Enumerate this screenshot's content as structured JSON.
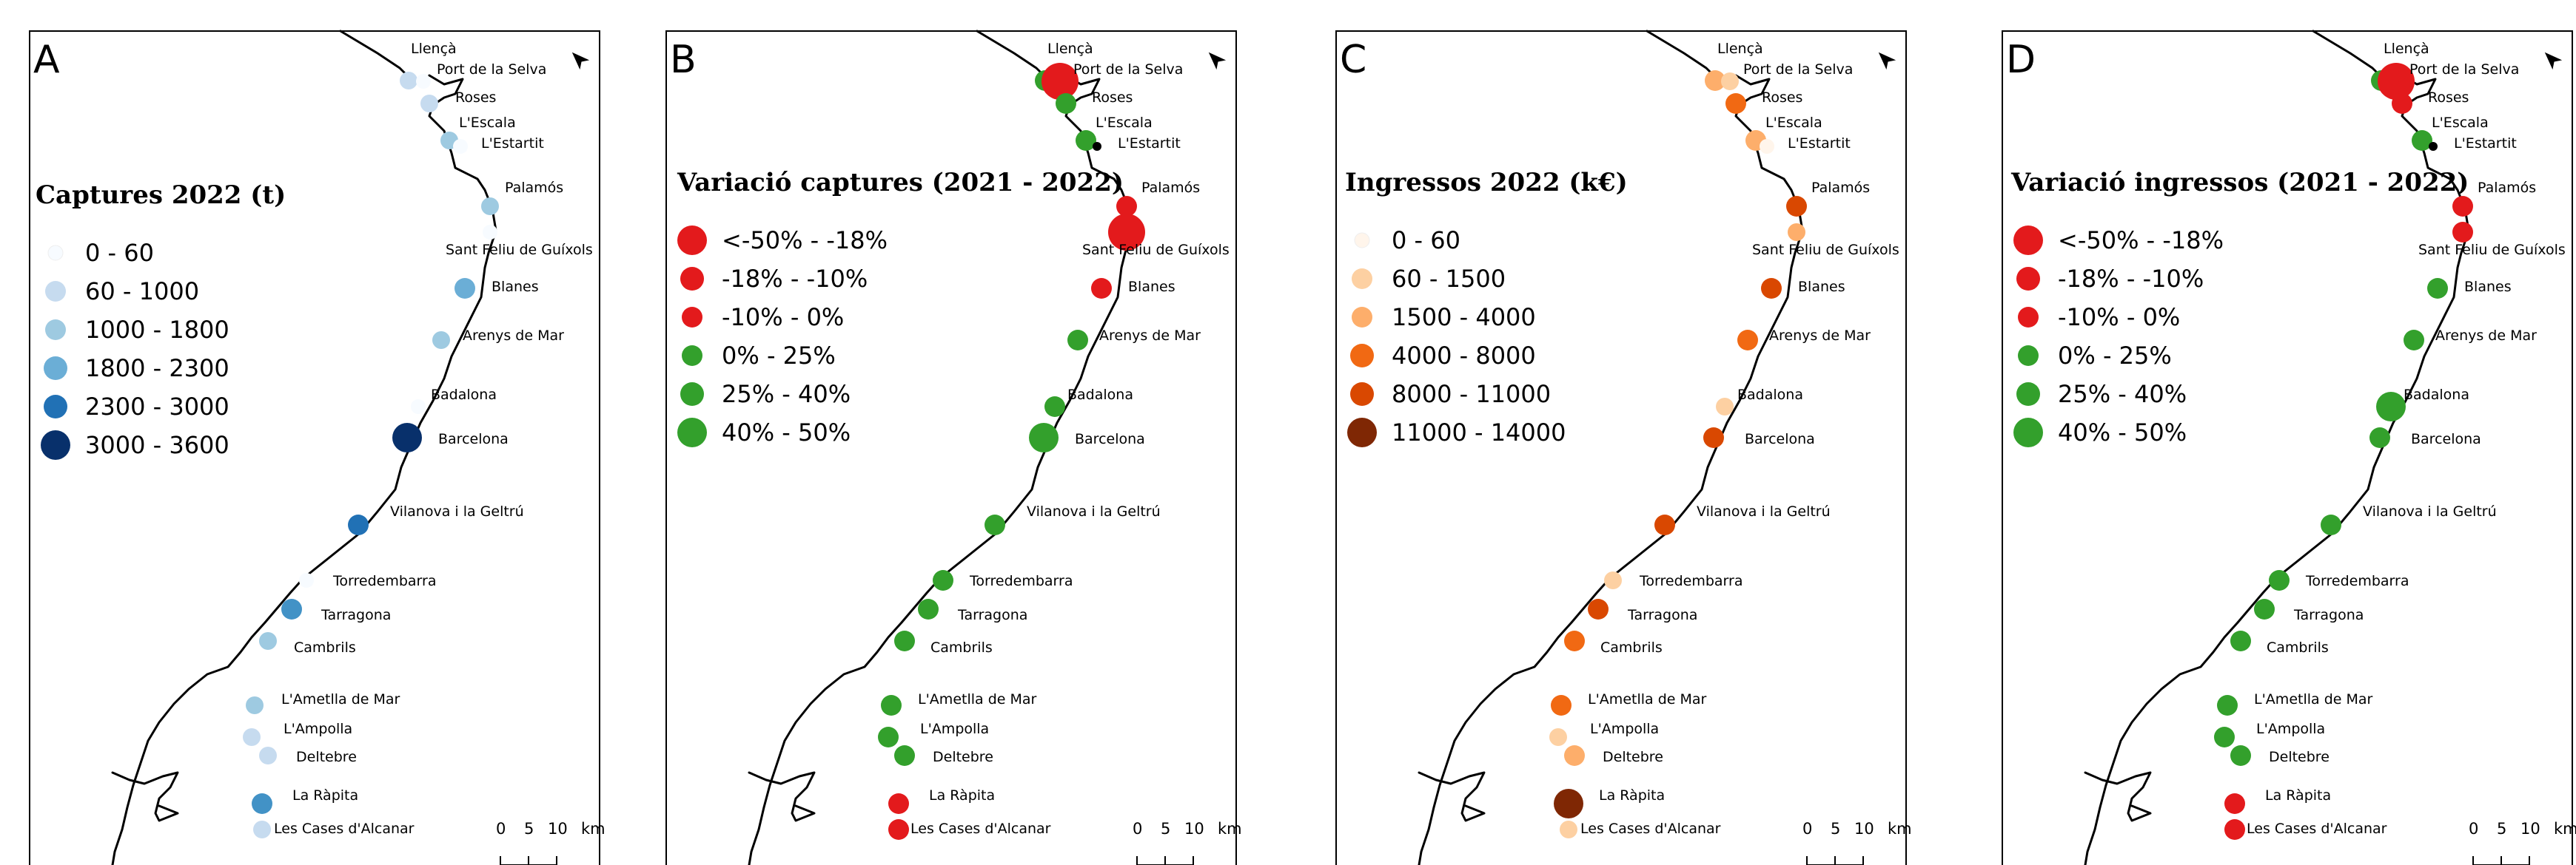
{
  "panels": [
    {
      "letter": "A",
      "legend_title": "Captures 2022 (t)",
      "legend": [
        {
          "label": "0 - 60",
          "color": "#f7fbff",
          "size": "xs"
        },
        {
          "label": "60 - 1000",
          "color": "#c6dbef",
          "size": "s"
        },
        {
          "label": "1000 - 1800",
          "color": "#9ecae1",
          "size": "s"
        },
        {
          "label": "1800 - 2300",
          "color": "#6baed6",
          "size": "m"
        },
        {
          "label": "2300 - 3000",
          "color": "#2171b5",
          "size": "m"
        },
        {
          "label": "3000 - 3600",
          "color": "#08306b",
          "size": "l"
        }
      ],
      "ports": [
        {
          "name": "Llençà",
          "color": "#c6dbef",
          "size": "s"
        },
        {
          "name": "Port de la Selva",
          "color": "#f7fbff",
          "size": "xs"
        },
        {
          "name": "Roses",
          "color": "#c6dbef",
          "size": "s"
        },
        {
          "name": "L'Escala",
          "color": "#9ecae1",
          "size": "s"
        },
        {
          "name": "L'Estartit",
          "color": "#f7fbff",
          "size": "xs"
        },
        {
          "name": "Palamós",
          "color": "#9ecae1",
          "size": "s"
        },
        {
          "name": "Sant Feliu de Guíxols",
          "color": "#f7fbff",
          "size": "xs"
        },
        {
          "name": "Blanes",
          "color": "#6baed6",
          "size": "m"
        },
        {
          "name": "Arenys de Mar",
          "color": "#9ecae1",
          "size": "s"
        },
        {
          "name": "Badalona",
          "color": "#f7fbff",
          "size": "xs"
        },
        {
          "name": "Barcelona",
          "color": "#08306b",
          "size": "l"
        },
        {
          "name": "Vilanova i la Geltrú",
          "color": "#2171b5",
          "size": "m"
        },
        {
          "name": "Torredembarra",
          "color": "#f7fbff",
          "size": "xs"
        },
        {
          "name": "Tarragona",
          "color": "#4292c6",
          "size": "m"
        },
        {
          "name": "Cambrils",
          "color": "#9ecae1",
          "size": "s"
        },
        {
          "name": "L'Ametlla de Mar",
          "color": "#9ecae1",
          "size": "s"
        },
        {
          "name": "L'Ampolla",
          "color": "#c6dbef",
          "size": "s"
        },
        {
          "name": "Deltebre",
          "color": "#c6dbef",
          "size": "s"
        },
        {
          "name": "La Ràpita",
          "color": "#4292c6",
          "size": "m"
        },
        {
          "name": "Les Cases d'Alcanar",
          "color": "#c6dbef",
          "size": "s"
        }
      ]
    },
    {
      "letter": "B",
      "legend_title": "Variació captures (2021 - 2022)",
      "legend": [
        {
          "label": "<-50% - -18%",
          "color": "#e31a1c",
          "size": "l"
        },
        {
          "label": "-18% - -10%",
          "color": "#e31a1c",
          "size": "m"
        },
        {
          "label": "-10% - 0%",
          "color": "#e31a1c",
          "size": "s"
        },
        {
          "label": "0% - 25%",
          "color": "#33a02c",
          "size": "s"
        },
        {
          "label": "25% - 40%",
          "color": "#33a02c",
          "size": "m"
        },
        {
          "label": "40% - 50%",
          "color": "#33a02c",
          "size": "l"
        }
      ],
      "ports": [
        {
          "name": "Llençà",
          "color": "#33a02c",
          "size": "m"
        },
        {
          "name": "Port de la Selva",
          "color": "#e31a1c",
          "size": "xl"
        },
        {
          "name": "Roses",
          "color": "#33a02c",
          "size": "m"
        },
        {
          "name": "L'Escala",
          "color": "#33a02c",
          "size": "m"
        },
        {
          "name": "L'Estartit",
          "color": "#000000",
          "size": "dot"
        },
        {
          "name": "Palamós",
          "color": "#e31a1c",
          "size": "m"
        },
        {
          "name": "Sant Feliu de Guíxols",
          "color": "#e31a1c",
          "size": "xl"
        },
        {
          "name": "Blanes",
          "color": "#e31a1c",
          "size": "m"
        },
        {
          "name": "Arenys de Mar",
          "color": "#33a02c",
          "size": "m"
        },
        {
          "name": "Badalona",
          "color": "#33a02c",
          "size": "m"
        },
        {
          "name": "Barcelona",
          "color": "#33a02c",
          "size": "l"
        },
        {
          "name": "Vilanova i la Geltrú",
          "color": "#33a02c",
          "size": "m"
        },
        {
          "name": "Torredembarra",
          "color": "#33a02c",
          "size": "m"
        },
        {
          "name": "Tarragona",
          "color": "#33a02c",
          "size": "m"
        },
        {
          "name": "Cambrils",
          "color": "#33a02c",
          "size": "m"
        },
        {
          "name": "L'Ametlla de Mar",
          "color": "#33a02c",
          "size": "m"
        },
        {
          "name": "L'Ampolla",
          "color": "#33a02c",
          "size": "m"
        },
        {
          "name": "Deltebre",
          "color": "#33a02c",
          "size": "m"
        },
        {
          "name": "La Ràpita",
          "color": "#e31a1c",
          "size": "m"
        },
        {
          "name": "Les Cases d'Alcanar",
          "color": "#e31a1c",
          "size": "m"
        }
      ]
    },
    {
      "letter": "C",
      "legend_title": "Ingressos 2022 (k€)",
      "legend": [
        {
          "label": "0 - 60",
          "color": "#fff5eb",
          "size": "xs"
        },
        {
          "label": "60 - 1500",
          "color": "#fdd0a2",
          "size": "s"
        },
        {
          "label": "1500 - 4000",
          "color": "#fdae6b",
          "size": "s"
        },
        {
          "label": "4000 - 8000",
          "color": "#f16913",
          "size": "m"
        },
        {
          "label": "8000 - 11000",
          "color": "#d94801",
          "size": "m"
        },
        {
          "label": "11000 - 14000",
          "color": "#7f2704",
          "size": "l"
        }
      ],
      "ports": [
        {
          "name": "Llençà",
          "color": "#fdae6b",
          "size": "m"
        },
        {
          "name": "Port de la Selva",
          "color": "#fdd0a2",
          "size": "s"
        },
        {
          "name": "Roses",
          "color": "#f16913",
          "size": "m"
        },
        {
          "name": "L'Escala",
          "color": "#fdae6b",
          "size": "m"
        },
        {
          "name": "L'Estartit",
          "color": "#fff5eb",
          "size": "xs"
        },
        {
          "name": "Palamós",
          "color": "#d94801",
          "size": "m"
        },
        {
          "name": "Sant Feliu de Guíxols",
          "color": "#fdae6b",
          "size": "s"
        },
        {
          "name": "Blanes",
          "color": "#d94801",
          "size": "m"
        },
        {
          "name": "Arenys de Mar",
          "color": "#f16913",
          "size": "m"
        },
        {
          "name": "Badalona",
          "color": "#fdd0a2",
          "size": "s"
        },
        {
          "name": "Barcelona",
          "color": "#d94801",
          "size": "m"
        },
        {
          "name": "Vilanova i la Geltrú",
          "color": "#d94801",
          "size": "m"
        },
        {
          "name": "Torredembarra",
          "color": "#fdd0a2",
          "size": "s"
        },
        {
          "name": "Tarragona",
          "color": "#d94801",
          "size": "m"
        },
        {
          "name": "Cambrils",
          "color": "#f16913",
          "size": "m"
        },
        {
          "name": "L'Ametlla de Mar",
          "color": "#f16913",
          "size": "m"
        },
        {
          "name": "L'Ampolla",
          "color": "#fdd0a2",
          "size": "s"
        },
        {
          "name": "Deltebre",
          "color": "#fdae6b",
          "size": "m"
        },
        {
          "name": "La Ràpita",
          "color": "#7f2704",
          "size": "l"
        },
        {
          "name": "Les Cases d'Alcanar",
          "color": "#fdd0a2",
          "size": "s"
        }
      ]
    },
    {
      "letter": "D",
      "legend_title": "Variació ingressos (2021 - 2022)",
      "legend": [
        {
          "label": "<-50% - -18%",
          "color": "#e31a1c",
          "size": "l"
        },
        {
          "label": "-18% - -10%",
          "color": "#e31a1c",
          "size": "m"
        },
        {
          "label": "-10% - 0%",
          "color": "#e31a1c",
          "size": "s"
        },
        {
          "label": "0% - 25%",
          "color": "#33a02c",
          "size": "s"
        },
        {
          "label": "25% - 40%",
          "color": "#33a02c",
          "size": "m"
        },
        {
          "label": "40% - 50%",
          "color": "#33a02c",
          "size": "l"
        }
      ],
      "ports": [
        {
          "name": "Llençà",
          "color": "#33a02c",
          "size": "m"
        },
        {
          "name": "Port de la Selva",
          "color": "#e31a1c",
          "size": "xl"
        },
        {
          "name": "Roses",
          "color": "#e31a1c",
          "size": "m"
        },
        {
          "name": "L'Escala",
          "color": "#33a02c",
          "size": "m"
        },
        {
          "name": "L'Estartit",
          "color": "#000000",
          "size": "dot"
        },
        {
          "name": "Palamós",
          "color": "#e31a1c",
          "size": "m"
        },
        {
          "name": "Sant Feliu de Guíxols",
          "color": "#e31a1c",
          "size": "m"
        },
        {
          "name": "Blanes",
          "color": "#33a02c",
          "size": "m"
        },
        {
          "name": "Arenys de Mar",
          "color": "#33a02c",
          "size": "m"
        },
        {
          "name": "Badalona",
          "color": "#33a02c",
          "size": "l"
        },
        {
          "name": "Barcelona",
          "color": "#33a02c",
          "size": "m"
        },
        {
          "name": "Vilanova i la Geltrú",
          "color": "#33a02c",
          "size": "m"
        },
        {
          "name": "Torredembarra",
          "color": "#33a02c",
          "size": "m"
        },
        {
          "name": "Tarragona",
          "color": "#33a02c",
          "size": "m"
        },
        {
          "name": "Cambrils",
          "color": "#33a02c",
          "size": "m"
        },
        {
          "name": "L'Ametlla de Mar",
          "color": "#33a02c",
          "size": "m"
        },
        {
          "name": "L'Ampolla",
          "color": "#33a02c",
          "size": "m"
        },
        {
          "name": "Deltebre",
          "color": "#33a02c",
          "size": "m"
        },
        {
          "name": "La Ràpita",
          "color": "#e31a1c",
          "size": "m"
        },
        {
          "name": "Les Cases d'Alcanar",
          "color": "#e31a1c",
          "size": "m"
        }
      ]
    }
  ],
  "scale_bar": {
    "ticks": [
      "0",
      "5",
      "10"
    ],
    "unit": "km"
  },
  "icons": {
    "north_arrow": "north-arrow-icon"
  }
}
